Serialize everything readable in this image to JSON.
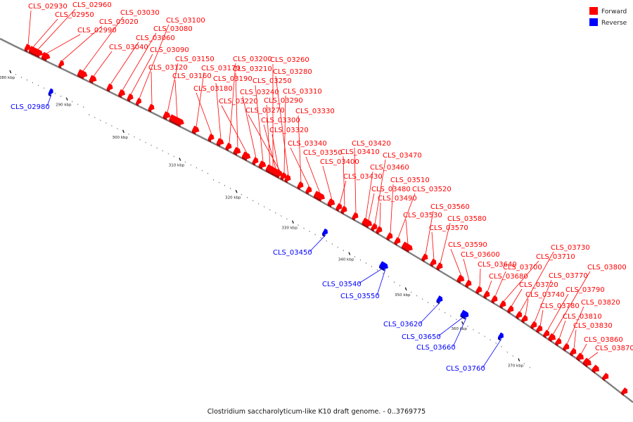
{
  "legend": [
    {
      "label": "Forward",
      "color": "#ff0000"
    },
    {
      "label": "Reverse",
      "color": "#0000ff"
    }
  ],
  "caption": "Clostridium saccharolyticum-like K10 draft genome. - 0..3769775",
  "colors": {
    "forward": "#ff0000",
    "reverse": "#0000ff",
    "backbone": "#808080"
  },
  "axis": {
    "tick_unit": "kbp",
    "major_ticks": [
      280,
      290,
      300,
      310,
      320,
      330,
      340,
      350,
      360,
      370
    ]
  },
  "genes": [
    {
      "id": "CLS_02930",
      "strand": "forward"
    },
    {
      "id": "CLS_02950",
      "strand": "forward"
    },
    {
      "id": "CLS_02960",
      "strand": "forward"
    },
    {
      "id": "CLS_02980",
      "strand": "reverse"
    },
    {
      "id": "CLS_02990",
      "strand": "forward"
    },
    {
      "id": "CLS_03020",
      "strand": "forward"
    },
    {
      "id": "CLS_03030",
      "strand": "forward"
    },
    {
      "id": "CLS_03040",
      "strand": "forward"
    },
    {
      "id": "CLS_03060",
      "strand": "forward"
    },
    {
      "id": "CLS_03080",
      "strand": "forward"
    },
    {
      "id": "CLS_03090",
      "strand": "forward"
    },
    {
      "id": "CLS_03100",
      "strand": "forward"
    },
    {
      "id": "CLS_03120",
      "strand": "forward"
    },
    {
      "id": "CLS_03150",
      "strand": "forward"
    },
    {
      "id": "CLS_03160",
      "strand": "forward"
    },
    {
      "id": "CLS_03170",
      "strand": "forward"
    },
    {
      "id": "CLS_03180",
      "strand": "forward"
    },
    {
      "id": "CLS_03190",
      "strand": "forward"
    },
    {
      "id": "CLS_03200",
      "strand": "forward"
    },
    {
      "id": "CLS_03210",
      "strand": "forward"
    },
    {
      "id": "CLS_03220",
      "strand": "forward"
    },
    {
      "id": "CLS_03240",
      "strand": "forward"
    },
    {
      "id": "CLS_03250",
      "strand": "forward"
    },
    {
      "id": "CLS_03260",
      "strand": "forward"
    },
    {
      "id": "CLS_03270",
      "strand": "forward"
    },
    {
      "id": "CLS_03280",
      "strand": "forward"
    },
    {
      "id": "CLS_03290",
      "strand": "forward"
    },
    {
      "id": "CLS_03300",
      "strand": "forward"
    },
    {
      "id": "CLS_03310",
      "strand": "forward"
    },
    {
      "id": "CLS_03320",
      "strand": "forward"
    },
    {
      "id": "CLS_03330",
      "strand": "forward"
    },
    {
      "id": "CLS_03340",
      "strand": "forward"
    },
    {
      "id": "CLS_03350",
      "strand": "forward"
    },
    {
      "id": "CLS_03400",
      "strand": "forward"
    },
    {
      "id": "CLS_03410",
      "strand": "forward"
    },
    {
      "id": "CLS_03420",
      "strand": "forward"
    },
    {
      "id": "CLS_03430",
      "strand": "forward"
    },
    {
      "id": "CLS_03450",
      "strand": "reverse"
    },
    {
      "id": "CLS_03460",
      "strand": "forward"
    },
    {
      "id": "CLS_03470",
      "strand": "forward"
    },
    {
      "id": "CLS_03480",
      "strand": "forward"
    },
    {
      "id": "CLS_03490",
      "strand": "forward"
    },
    {
      "id": "CLS_03510",
      "strand": "forward"
    },
    {
      "id": "CLS_03520",
      "strand": "forward"
    },
    {
      "id": "CLS_03530",
      "strand": "forward"
    },
    {
      "id": "CLS_03540",
      "strand": "reverse"
    },
    {
      "id": "CLS_03550",
      "strand": "reverse"
    },
    {
      "id": "CLS_03560",
      "strand": "forward"
    },
    {
      "id": "CLS_03570",
      "strand": "forward"
    },
    {
      "id": "CLS_03580",
      "strand": "forward"
    },
    {
      "id": "CLS_03590",
      "strand": "forward"
    },
    {
      "id": "CLS_03600",
      "strand": "forward"
    },
    {
      "id": "CLS_03620",
      "strand": "reverse"
    },
    {
      "id": "CLS_03640",
      "strand": "forward"
    },
    {
      "id": "CLS_03650",
      "strand": "reverse"
    },
    {
      "id": "CLS_03660",
      "strand": "reverse"
    },
    {
      "id": "CLS_03680",
      "strand": "forward"
    },
    {
      "id": "CLS_03700",
      "strand": "forward"
    },
    {
      "id": "CLS_03710",
      "strand": "forward"
    },
    {
      "id": "CLS_03720",
      "strand": "forward"
    },
    {
      "id": "CLS_03730",
      "strand": "forward"
    },
    {
      "id": "CLS_03740",
      "strand": "forward"
    },
    {
      "id": "CLS_03760",
      "strand": "reverse"
    },
    {
      "id": "CLS_03770",
      "strand": "forward"
    },
    {
      "id": "CLS_03780",
      "strand": "forward"
    },
    {
      "id": "CLS_03790",
      "strand": "forward"
    },
    {
      "id": "CLS_03800",
      "strand": "forward"
    },
    {
      "id": "CLS_03810",
      "strand": "forward"
    },
    {
      "id": "CLS_03820",
      "strand": "forward"
    },
    {
      "id": "CLS_03830",
      "strand": "forward"
    },
    {
      "id": "CLS_03860",
      "strand": "forward"
    },
    {
      "id": "CLS_03870",
      "strand": "forward"
    }
  ]
}
